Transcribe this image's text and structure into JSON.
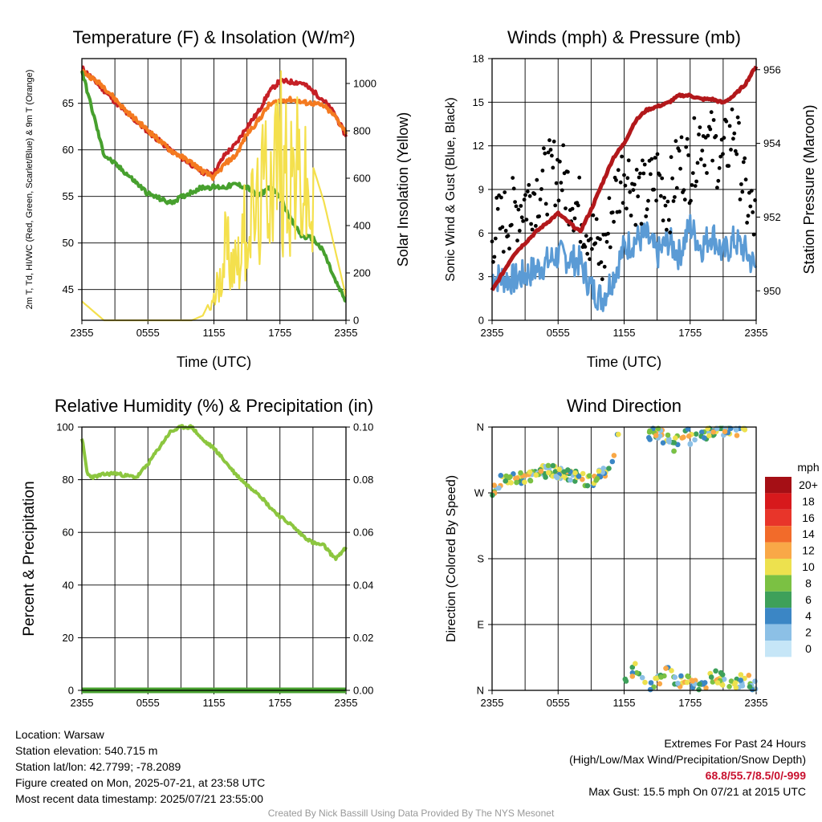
{
  "chart_data": [
    {
      "type": "line",
      "title": "Temperature (F) & Insolation (W/m²)",
      "xlabel": "Time (UTC)",
      "ylabel": "2m T, Td, HI/WC (Red, Green, Scarlet/Blue) & 9m T (Orange)",
      "ylabel_right": "Solar Insolation (Yellow)",
      "x_ticks": [
        "2355",
        "0555",
        "1155",
        "1755",
        "2355"
      ],
      "y_ticks": [
        45,
        50,
        55,
        60,
        65
      ],
      "y_right_ticks": [
        0,
        200,
        400,
        600,
        800,
        1000
      ],
      "ylim": [
        41.7,
        69.8
      ],
      "ylim_right": [
        0,
        1105
      ],
      "grid": true,
      "x_hours": [
        0,
        2,
        4,
        6,
        8,
        10,
        11,
        12,
        13,
        14,
        15,
        16,
        17,
        18,
        19,
        20,
        21,
        22,
        23,
        24
      ],
      "series": [
        {
          "color": "#c62026",
          "values": [
            68.8,
            66.4,
            64.0,
            62.0,
            60.0,
            58.4,
            57.6,
            57.5,
            59.5,
            60.6,
            62.5,
            64.0,
            66.2,
            67.4,
            67.3,
            67.2,
            66.3,
            65.3,
            63.8,
            61.5
          ]
        },
        {
          "color": "#f47a20",
          "values": [
            68.5,
            66.8,
            64.2,
            62.1,
            60.0,
            58.6,
            57.7,
            57.0,
            58.5,
            59.4,
            61.7,
            63.1,
            64.8,
            65.3,
            65.4,
            65.1,
            65.0,
            64.7,
            63.6,
            61.9
          ]
        },
        {
          "color": "#47a02e",
          "values": [
            68.5,
            59.5,
            57.5,
            55.3,
            54.3,
            55.5,
            56.0,
            56.0,
            56.0,
            56.3,
            56.0,
            55.0,
            56.0,
            55.0,
            52.5,
            50.7,
            50.5,
            49.0,
            46.0,
            43.7
          ]
        },
        {
          "color": "#f4e04d",
          "axis": "right",
          "values": [
            80,
            0,
            0,
            0,
            0,
            0,
            20,
            120,
            500,
            400,
            650,
            700,
            1000,
            1100,
            1000,
            900,
            650,
            500,
            300,
            100
          ]
        }
      ]
    },
    {
      "type": "scatter",
      "title": "Winds (mph) & Pressure (mb)",
      "xlabel": "Time (UTC)",
      "ylabel": "Sonic Wind & Gust (Blue, Black)",
      "ylabel_right": "Station Pressure (Maroon)",
      "x_ticks": [
        "2355",
        "0555",
        "1155",
        "1755",
        "2355"
      ],
      "y_ticks": [
        0,
        3,
        6,
        9,
        12,
        15,
        18
      ],
      "y_right_ticks": [
        950,
        952,
        954,
        956
      ],
      "ylim": [
        0,
        18
      ],
      "ylim_right": [
        949.2,
        956.3
      ],
      "grid": true,
      "x_hours": [
        0,
        2,
        4,
        6,
        8,
        9,
        10,
        11,
        12,
        13,
        14,
        15,
        16,
        17,
        18,
        19,
        20,
        21,
        22,
        23,
        24
      ],
      "series": [
        {
          "color": "#b2181b",
          "axis": "right",
          "values": [
            950.0,
            951.0,
            951.6,
            952.1,
            951.6,
            952.2,
            952.9,
            953.6,
            954.0,
            954.6,
            954.9,
            955.0,
            955.1,
            955.3,
            955.3,
            955.2,
            955.2,
            955.1,
            955.3,
            955.6,
            956.1
          ]
        },
        {
          "color": "#5b9bd5",
          "values": [
            3.0,
            2.8,
            3.5,
            4.5,
            4.0,
            2.2,
            1.5,
            3.0,
            5.0,
            5.5,
            5.8,
            4.5,
            5.5,
            4.5,
            6.5,
            5.0,
            6.0,
            4.5,
            5.5,
            4.8,
            3.5
          ]
        },
        {
          "color": "#000000",
          "values": [
            6.0,
            7.5,
            9.0,
            10.5,
            7.5,
            6.0,
            4.0,
            8.0,
            10.5,
            9.0,
            8.5,
            10.0,
            8.0,
            11.0,
            10.5,
            13.0,
            12.0,
            11.0,
            13.5,
            8.5,
            6.5
          ]
        }
      ]
    },
    {
      "type": "line",
      "title": "Relative Humidity (%) & Precipitation (in)",
      "ylabel": "Percent & Precipitation",
      "x_ticks": [
        "2355",
        "0555",
        "1155",
        "1755",
        "2355"
      ],
      "y_ticks": [
        0,
        20,
        40,
        60,
        80,
        100
      ],
      "y_right_ticks": [
        "0.00",
        "0.02",
        "0.04",
        "0.06",
        "0.08",
        "0.10"
      ],
      "ylim": [
        0,
        100
      ],
      "ylim_right": [
        0,
        0.1
      ],
      "grid": true,
      "x_hours": [
        0,
        0.5,
        1,
        2,
        3,
        4,
        5,
        6,
        7,
        8,
        9,
        10,
        11,
        12,
        13,
        14,
        15,
        16,
        17,
        18,
        19,
        20,
        21,
        22,
        23,
        24
      ],
      "series": [
        {
          "color": "#8cc63f",
          "values": [
            96,
            82,
            81,
            82,
            82.5,
            81.5,
            81,
            86,
            92,
            98,
            100,
            100,
            95,
            92,
            87,
            82,
            78,
            75,
            70,
            66,
            63,
            59,
            56,
            55,
            50,
            54
          ]
        },
        {
          "color": "#47a02e",
          "axis": "right",
          "values": [
            0,
            0,
            0,
            0,
            0,
            0,
            0,
            0,
            0,
            0,
            0,
            0,
            0,
            0,
            0,
            0,
            0,
            0,
            0,
            0,
            0,
            0,
            0,
            0,
            0,
            0
          ]
        }
      ]
    },
    {
      "type": "scatter",
      "title": "Wind Direction",
      "ylabel": "Direction (Colored By Speed)",
      "x_ticks": [
        "2355",
        "0555",
        "1155",
        "1755",
        "2355"
      ],
      "y_ticks": [
        "N",
        "E",
        "S",
        "W",
        "N"
      ],
      "ylim": [
        0,
        360
      ],
      "grid": true,
      "legend": {
        "title": "mph",
        "labels": [
          "20+",
          "18",
          "16",
          "14",
          "12",
          "10",
          "8",
          "6",
          "4",
          "2",
          "0"
        ],
        "colors": [
          "#a50f15",
          "#d7191c",
          "#e8352a",
          "#f26b2a",
          "#f9a847",
          "#ede14e",
          "#7bc143",
          "#3ea05a",
          "#3b86c5",
          "#8cc0e6",
          "#c6e6f7"
        ]
      },
      "series": [
        {
          "name": "early",
          "x_hours": [
            0,
            1,
            2,
            3,
            4,
            5,
            6,
            7,
            8,
            9,
            10,
            11,
            11.5
          ],
          "values": [
            270,
            290,
            290,
            288,
            295,
            300,
            298,
            292,
            290,
            285,
            295,
            310,
            355
          ]
        },
        {
          "name": "north",
          "x_hours": [
            14,
            15,
            16,
            16.5,
            17,
            17.5,
            18,
            19,
            20,
            21,
            22,
            23
          ],
          "values": [
            350,
            355,
            340,
            330,
            350,
            355,
            345,
            350,
            355,
            358,
            355,
            355
          ]
        },
        {
          "name": "northeast",
          "x_hours": [
            12,
            12.5,
            13,
            13.5,
            14,
            14.5,
            15,
            16,
            17,
            18,
            19,
            20,
            21,
            22,
            23,
            24
          ],
          "values": [
            15,
            25,
            30,
            20,
            10,
            5,
            15,
            25,
            10,
            15,
            5,
            20,
            15,
            10,
            15,
            5
          ]
        }
      ]
    }
  ],
  "info": {
    "location": "Location: Warsaw",
    "elevation": "Station elevation: 540.715 m",
    "latlon": "Station lat/lon: 42.7799; -78.2089",
    "created": "Figure created on Mon, 2025-07-21, at 23:58 UTC",
    "recent": "Most recent data timestamp: 2025/07/21 23:55:00"
  },
  "extremes": {
    "heading": "Extremes For Past 24 Hours",
    "subheading": "(High/Low/Max Wind/Precipitation/Snow Depth)",
    "values": "68.8/55.7/8.5/0/-999",
    "max_gust": "Max Gust: 15.5 mph On 07/21 at 2015 UTC"
  },
  "credit": "Created By Nick Bassill Using Data Provided By The NYS Mesonet"
}
